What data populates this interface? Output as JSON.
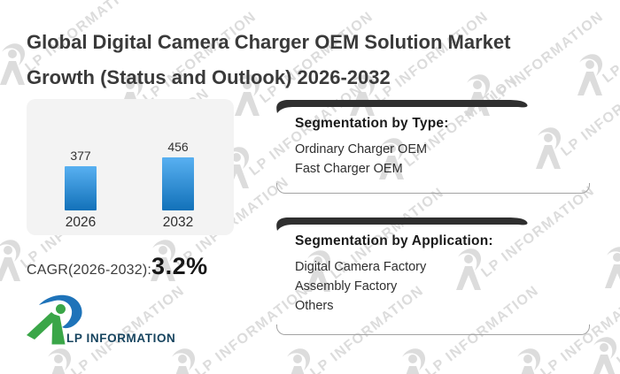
{
  "title": {
    "line1": "Global Digital Camera Charger OEM Solution Market",
    "line2": "Growth (Status and Outlook) 2026-2032"
  },
  "chart_data": {
    "type": "bar",
    "categories": [
      "2026",
      "2032"
    ],
    "values": [
      377,
      456
    ],
    "title": "Global Digital Camera Charger OEM Solution Market Growth",
    "xlabel": "",
    "ylabel": "",
    "ylim": [
      0,
      456
    ],
    "grid": false,
    "legend": "none",
    "bar_color_top": "#58b0f1",
    "bar_color_bottom": "#1271b9",
    "panel_bg": "#f3f3f3"
  },
  "cagr": {
    "label": "CAGR(2026-2032):",
    "value": "3.2%"
  },
  "segmentation": [
    {
      "heading": "Segmentation by Type:",
      "items": [
        "Ordinary Charger OEM",
        "Fast Charger OEM"
      ]
    },
    {
      "heading": "Segmentation by Application:",
      "items": [
        "Digital Camera Factory",
        "Assembly Factory",
        "Others"
      ]
    }
  ],
  "logo": {
    "text": "LP INFORMATION"
  },
  "watermark": {
    "text": "LP INFORMATION",
    "color": "#d6d6d6"
  },
  "colors": {
    "title_text": "#3a3a3a",
    "ribbon_dark": "#2f2f2f",
    "logo_green": "#3aa648",
    "logo_blue": "#1e73b9",
    "logo_text": "#17445f"
  }
}
